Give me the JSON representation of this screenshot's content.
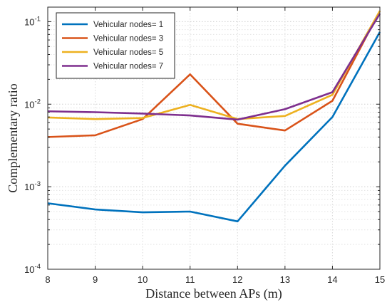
{
  "chart_data": {
    "type": "line",
    "xlabel": "Distance between APs (m)",
    "ylabel": "Complementary ratio",
    "x": [
      8,
      9,
      10,
      11,
      12,
      13,
      14,
      15
    ],
    "xlim": [
      8,
      15
    ],
    "ylim": [
      0.0001,
      0.15
    ],
    "yscale": "log",
    "x_tick_labels": [
      "8",
      "9",
      "10",
      "11",
      "12",
      "13",
      "14",
      "15"
    ],
    "y_tick_labels": [
      {
        "base": "10",
        "exp": "-4"
      },
      {
        "base": "10",
        "exp": "-3"
      },
      {
        "base": "10",
        "exp": "-2"
      },
      {
        "base": "10",
        "exp": "-1"
      }
    ],
    "grid": true,
    "legend_position": "top-left",
    "series": [
      {
        "name": "Vehicular nodes= 1",
        "color": "#0072BD",
        "values": [
          0.00063,
          0.00053,
          0.00049,
          0.0005,
          0.00038,
          0.0018,
          0.007,
          0.075
        ]
      },
      {
        "name": "Vehicular nodes= 3",
        "color": "#D95319",
        "values": [
          0.004,
          0.0042,
          0.0066,
          0.023,
          0.0058,
          0.0048,
          0.011,
          0.135
        ]
      },
      {
        "name": "Vehicular nodes= 5",
        "color": "#EDB120",
        "values": [
          0.0069,
          0.0066,
          0.0068,
          0.0098,
          0.0066,
          0.0072,
          0.013,
          0.135
        ]
      },
      {
        "name": "Vehicular nodes= 7",
        "color": "#7E2F8E",
        "values": [
          0.0082,
          0.008,
          0.0077,
          0.0073,
          0.0065,
          0.0087,
          0.014,
          0.125
        ]
      }
    ]
  }
}
